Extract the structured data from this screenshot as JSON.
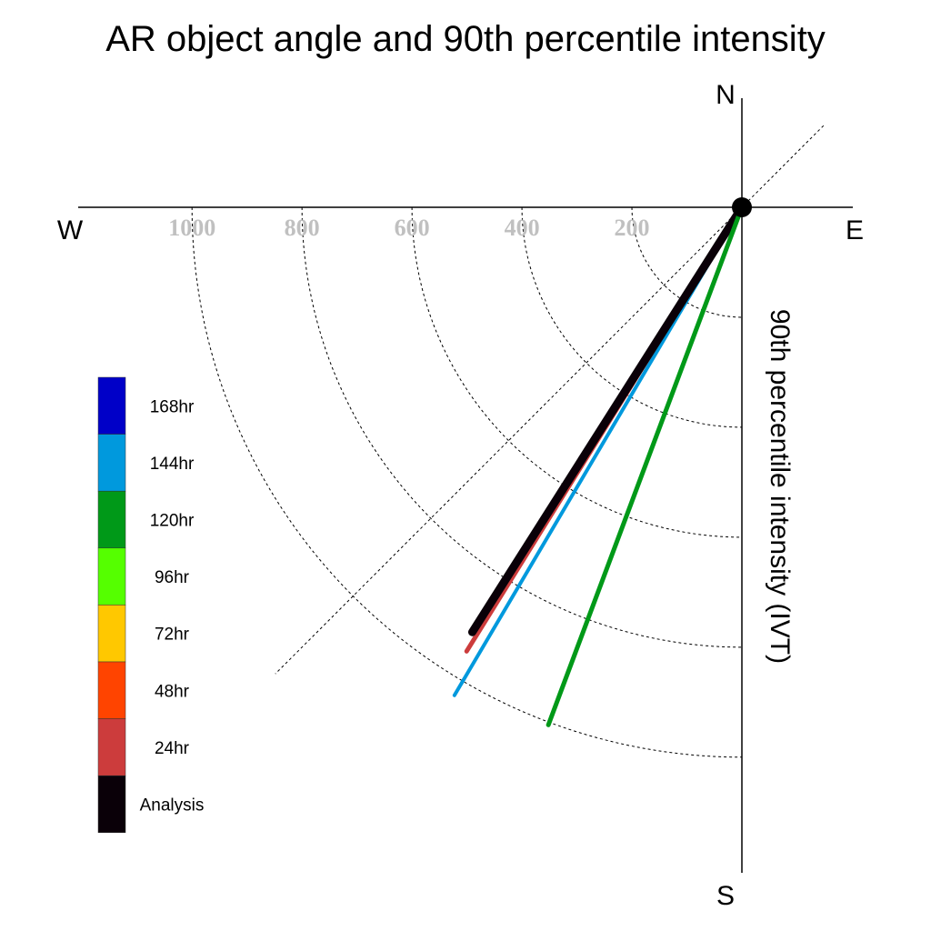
{
  "chart_data": {
    "type": "polar-line",
    "title": "AR object angle and 90th percentile intensity",
    "ylabel": "90th percentile intensity (IVT)",
    "compass": {
      "north": "N",
      "south": "S",
      "west": "W",
      "east": "E"
    },
    "radial_ticks": [
      "200",
      "400",
      "600",
      "800",
      "1000"
    ],
    "radial_tick_values": [
      200,
      400,
      600,
      800,
      1000
    ],
    "rlim": [
      0,
      1200
    ],
    "grid": true,
    "legend_position": "left",
    "series": [
      {
        "name": "144hr",
        "angle_deg": 210.5,
        "value": 1030,
        "color": "#0099dd",
        "linewidth": 4
      },
      {
        "name": "24hr",
        "angle_deg": 211.8,
        "value": 950,
        "color": "#cc3c3c",
        "linewidth": 5
      },
      {
        "name": "Analysis",
        "angle_deg": 212.4,
        "value": 915,
        "color": "#0a0008",
        "linewidth": 9
      },
      {
        "name": "120hr",
        "angle_deg": 200.5,
        "value": 1005,
        "color": "#009918",
        "linewidth": 5
      }
    ],
    "legend": [
      {
        "label": "168hr",
        "color": "#0000c8"
      },
      {
        "label": "144hr",
        "color": "#0099dd"
      },
      {
        "label": "120hr",
        "color": "#009918"
      },
      {
        "label": "96hr",
        "color": "#55ff00"
      },
      {
        "label": "72hr",
        "color": "#ffc800"
      },
      {
        "label": "48hr",
        "color": "#ff4400"
      },
      {
        "label": "24hr",
        "color": "#cc3c3c"
      },
      {
        "label": "Analysis",
        "color": "#0a0008"
      }
    ]
  }
}
